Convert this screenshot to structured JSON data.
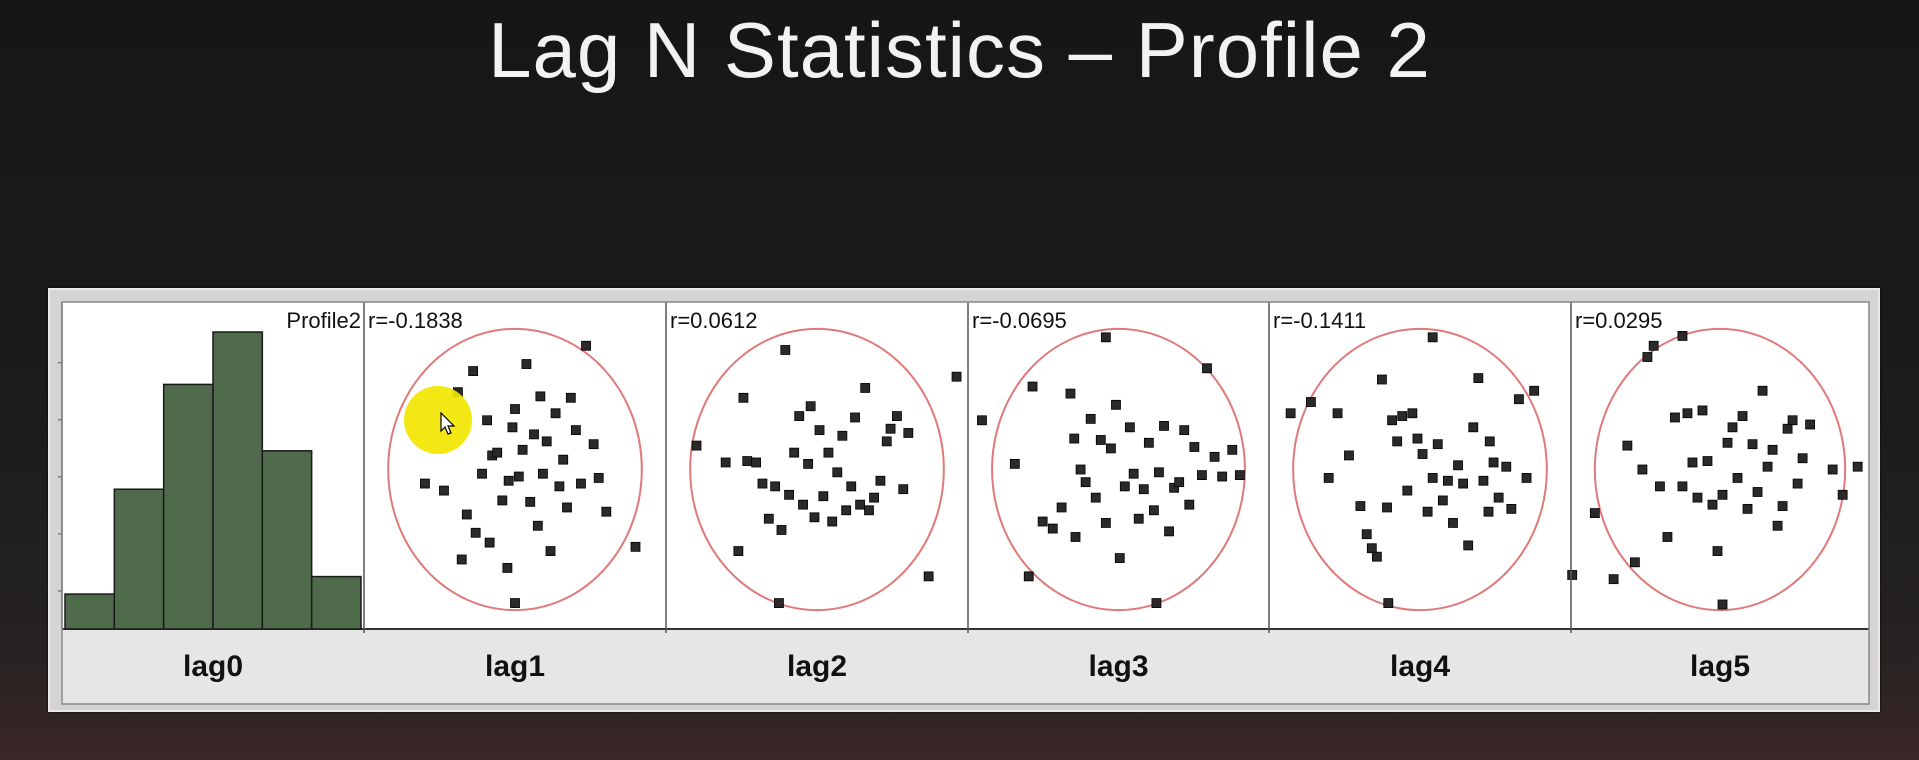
{
  "slide": {
    "title": "Lag N Statistics – Profile 2"
  },
  "colors": {
    "bar_fill": "#4f6b4b",
    "ellipse": "#e07a7a",
    "point": "#2a2a2a",
    "highlight": "#f2e600"
  },
  "chart_data": [
    {
      "type": "bar",
      "panel_label": "lag0",
      "series_label": "Profile2",
      "bins": 6,
      "values": [
        1,
        4,
        7,
        8.5,
        5.1,
        1.5
      ]
    },
    {
      "type": "scatter",
      "panel_label": "lag1",
      "r_label": "r=-0.1838",
      "points": [
        [
          -0.56,
          -0.15
        ],
        [
          -0.71,
          -0.1
        ],
        [
          -0.42,
          -0.64
        ],
        [
          -0.38,
          -0.32
        ],
        [
          -0.45,
          0.55
        ],
        [
          -0.33,
          0.7
        ],
        [
          -0.31,
          -0.45
        ],
        [
          -0.26,
          -0.03
        ],
        [
          -0.22,
          0.35
        ],
        [
          -0.2,
          -0.52
        ],
        [
          -0.18,
          0.1
        ],
        [
          -0.14,
          0.12
        ],
        [
          -0.1,
          -0.22
        ],
        [
          -0.06,
          -0.7
        ],
        [
          -0.02,
          0.3
        ],
        [
          0.0,
          0.43
        ],
        [
          0.03,
          -0.05
        ],
        [
          0.06,
          0.14
        ],
        [
          0.09,
          0.75
        ],
        [
          0.12,
          -0.23
        ],
        [
          0.15,
          0.25
        ],
        [
          0.18,
          -0.4
        ],
        [
          0.22,
          -0.03
        ],
        [
          0.25,
          0.2
        ],
        [
          0.28,
          -0.58
        ],
        [
          0.32,
          0.4
        ],
        [
          0.35,
          -0.12
        ],
        [
          0.38,
          0.07
        ],
        [
          0.41,
          -0.27
        ],
        [
          0.44,
          0.51
        ],
        [
          0.48,
          0.28
        ],
        [
          0.52,
          -0.1
        ],
        [
          0.56,
          0.88
        ],
        [
          0.62,
          0.18
        ],
        [
          0.66,
          -0.06
        ],
        [
          0.72,
          -0.3
        ],
        [
          0.95,
          -0.55
        ],
        [
          0.0,
          -0.95
        ],
        [
          -0.05,
          -0.08
        ],
        [
          0.2,
          0.52
        ]
      ]
    },
    {
      "type": "scatter",
      "panel_label": "lag2",
      "r_label": "r=0.0612",
      "points": [
        [
          -0.95,
          0.17
        ],
        [
          -0.72,
          0.05
        ],
        [
          -0.62,
          -0.58
        ],
        [
          -0.58,
          0.51
        ],
        [
          -0.55,
          0.06
        ],
        [
          -0.48,
          0.05
        ],
        [
          -0.43,
          -0.1
        ],
        [
          -0.38,
          -0.35
        ],
        [
          -0.33,
          -0.12
        ],
        [
          -0.28,
          -0.43
        ],
        [
          -0.25,
          0.85
        ],
        [
          -0.22,
          -0.18
        ],
        [
          -0.18,
          0.12
        ],
        [
          -0.14,
          0.38
        ],
        [
          -0.11,
          -0.25
        ],
        [
          -0.07,
          0.04
        ],
        [
          -0.02,
          -0.34
        ],
        [
          0.02,
          0.28
        ],
        [
          0.05,
          -0.19
        ],
        [
          0.09,
          0.12
        ],
        [
          0.12,
          -0.37
        ],
        [
          0.16,
          -0.02
        ],
        [
          0.2,
          0.24
        ],
        [
          0.23,
          -0.29
        ],
        [
          0.27,
          -0.12
        ],
        [
          0.3,
          0.37
        ],
        [
          0.34,
          -0.25
        ],
        [
          0.38,
          0.58
        ],
        [
          0.41,
          -0.29
        ],
        [
          0.45,
          -0.2
        ],
        [
          0.5,
          -0.08
        ],
        [
          0.55,
          0.2
        ],
        [
          0.58,
          0.29
        ],
        [
          0.63,
          0.38
        ],
        [
          0.68,
          -0.14
        ],
        [
          0.72,
          0.26
        ],
        [
          0.88,
          -0.76
        ],
        [
          1.1,
          0.66
        ],
        [
          -0.3,
          -0.95
        ],
        [
          -0.05,
          0.45
        ]
      ]
    },
    {
      "type": "scatter",
      "panel_label": "lag3",
      "r_label": "r=-0.0695",
      "points": [
        [
          -1.08,
          0.35
        ],
        [
          -0.82,
          0.04
        ],
        [
          -0.71,
          -0.76
        ],
        [
          -0.68,
          0.59
        ],
        [
          -0.6,
          -0.37
        ],
        [
          -0.52,
          -0.42
        ],
        [
          -0.45,
          -0.27
        ],
        [
          -0.38,
          0.54
        ],
        [
          -0.34,
          -0.48
        ],
        [
          -0.3,
          0.0
        ],
        [
          -0.26,
          -0.09
        ],
        [
          -0.22,
          0.36
        ],
        [
          -0.18,
          -0.2
        ],
        [
          -0.14,
          0.21
        ],
        [
          -0.1,
          -0.38
        ],
        [
          -0.06,
          0.15
        ],
        [
          -0.02,
          0.46
        ],
        [
          0.01,
          -0.63
        ],
        [
          0.05,
          -0.12
        ],
        [
          0.09,
          0.3
        ],
        [
          0.12,
          -0.03
        ],
        [
          0.16,
          -0.35
        ],
        [
          0.2,
          -0.14
        ],
        [
          0.24,
          0.19
        ],
        [
          0.28,
          -0.29
        ],
        [
          0.32,
          -0.02
        ],
        [
          0.36,
          0.31
        ],
        [
          0.4,
          -0.44
        ],
        [
          0.44,
          -0.13
        ],
        [
          0.48,
          -0.09
        ],
        [
          0.52,
          0.28
        ],
        [
          0.56,
          -0.25
        ],
        [
          0.6,
          0.16
        ],
        [
          0.66,
          -0.04
        ],
        [
          0.7,
          0.72
        ],
        [
          0.76,
          0.09
        ],
        [
          0.82,
          -0.05
        ],
        [
          0.96,
          -0.04
        ],
        [
          0.9,
          0.14
        ],
        [
          -0.1,
          0.94
        ],
        [
          0.3,
          -0.95
        ],
        [
          -0.35,
          0.22
        ]
      ]
    },
    {
      "type": "scatter",
      "panel_label": "lag4",
      "r_label": "r=-0.1411",
      "points": [
        [
          -1.02,
          0.4
        ],
        [
          -0.86,
          0.48
        ],
        [
          -0.72,
          -0.06
        ],
        [
          -0.65,
          0.4
        ],
        [
          -0.56,
          0.1
        ],
        [
          -0.47,
          -0.26
        ],
        [
          -0.42,
          -0.46
        ],
        [
          -0.38,
          -0.56
        ],
        [
          -0.34,
          -0.62
        ],
        [
          -0.3,
          0.64
        ],
        [
          -0.26,
          -0.27
        ],
        [
          -0.22,
          0.35
        ],
        [
          -0.18,
          0.2
        ],
        [
          -0.14,
          0.38
        ],
        [
          -0.1,
          -0.15
        ],
        [
          -0.06,
          0.4
        ],
        [
          -0.02,
          0.22
        ],
        [
          0.02,
          0.11
        ],
        [
          0.06,
          -0.3
        ],
        [
          0.1,
          -0.06
        ],
        [
          0.14,
          0.18
        ],
        [
          0.18,
          -0.22
        ],
        [
          0.22,
          -0.08
        ],
        [
          0.26,
          -0.38
        ],
        [
          0.3,
          0.03
        ],
        [
          0.34,
          -0.1
        ],
        [
          0.38,
          -0.54
        ],
        [
          0.42,
          0.3
        ],
        [
          0.46,
          0.65
        ],
        [
          0.5,
          -0.08
        ],
        [
          0.54,
          -0.3
        ],
        [
          0.58,
          0.05
        ],
        [
          0.62,
          -0.2
        ],
        [
          0.68,
          0.02
        ],
        [
          0.72,
          -0.28
        ],
        [
          0.78,
          0.5
        ],
        [
          0.84,
          -0.06
        ],
        [
          0.9,
          0.56
        ],
        [
          1.2,
          -0.75
        ],
        [
          0.1,
          0.94
        ],
        [
          -0.25,
          -0.95
        ],
        [
          0.55,
          0.2
        ]
      ]
    },
    {
      "type": "scatter",
      "panel_label": "lag5",
      "r_label": "r=0.0295",
      "points": [
        [
          -1.0,
          -0.31
        ],
        [
          -0.85,
          -0.78
        ],
        [
          -0.74,
          0.17
        ],
        [
          -0.68,
          -0.66
        ],
        [
          -0.62,
          0.0
        ],
        [
          -0.58,
          0.8
        ],
        [
          -0.53,
          0.88
        ],
        [
          -0.48,
          -0.12
        ],
        [
          -0.42,
          -0.48
        ],
        [
          -0.36,
          0.37
        ],
        [
          -0.3,
          -0.12
        ],
        [
          -0.26,
          0.4
        ],
        [
          -0.22,
          0.05
        ],
        [
          -0.18,
          -0.2
        ],
        [
          -0.14,
          0.42
        ],
        [
          -0.1,
          0.06
        ],
        [
          -0.06,
          -0.25
        ],
        [
          -0.02,
          -0.58
        ],
        [
          0.02,
          -0.18
        ],
        [
          0.06,
          0.19
        ],
        [
          0.1,
          0.3
        ],
        [
          0.14,
          -0.06
        ],
        [
          0.18,
          0.38
        ],
        [
          0.22,
          -0.28
        ],
        [
          0.26,
          0.18
        ],
        [
          0.3,
          -0.16
        ],
        [
          0.34,
          0.56
        ],
        [
          0.38,
          0.02
        ],
        [
          0.42,
          0.14
        ],
        [
          0.46,
          -0.4
        ],
        [
          0.5,
          -0.26
        ],
        [
          0.54,
          0.29
        ],
        [
          0.58,
          0.35
        ],
        [
          0.62,
          -0.1
        ],
        [
          0.66,
          0.08
        ],
        [
          0.72,
          0.32
        ],
        [
          0.9,
          0.0
        ],
        [
          0.98,
          -0.18
        ],
        [
          1.1,
          0.02
        ],
        [
          0.02,
          -0.96
        ],
        [
          -0.3,
          0.95
        ]
      ]
    }
  ]
}
